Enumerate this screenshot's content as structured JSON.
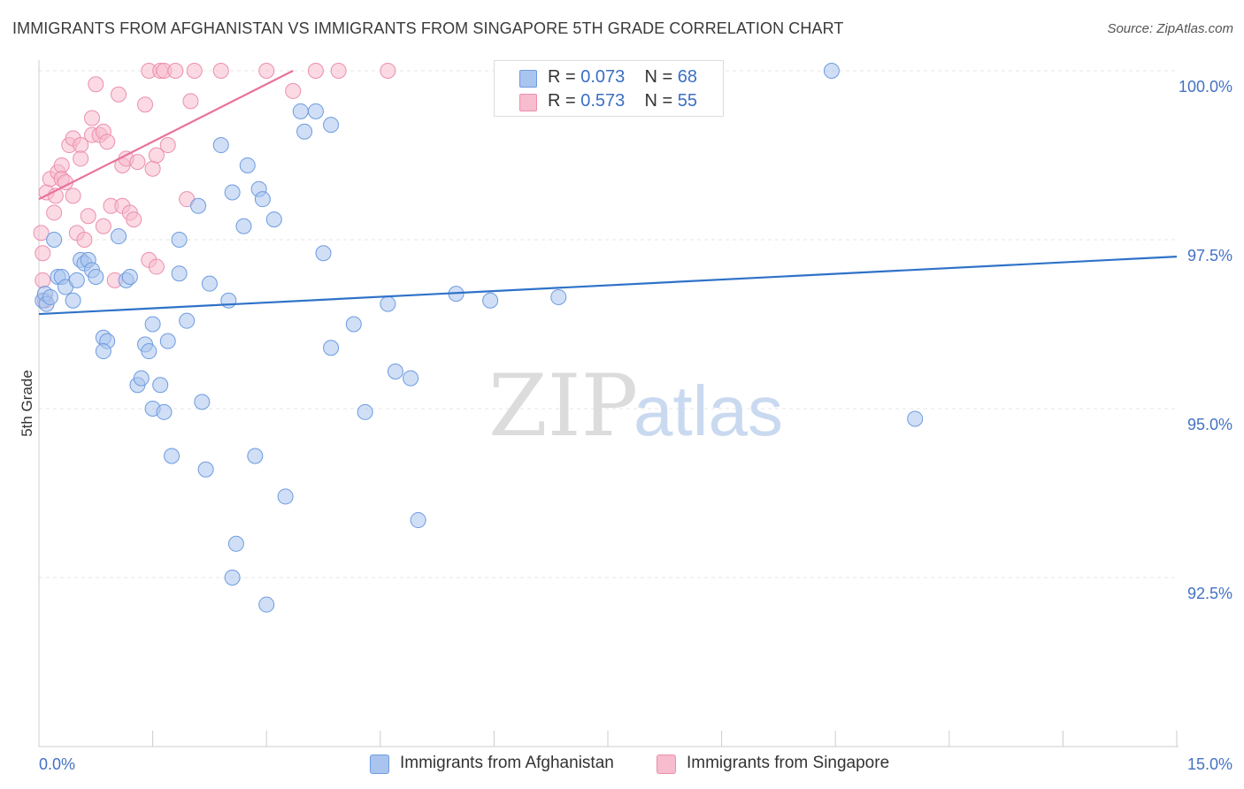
{
  "title": "IMMIGRANTS FROM AFGHANISTAN VS IMMIGRANTS FROM SINGAPORE 5TH GRADE CORRELATION CHART",
  "source": "Source: ZipAtlas.com",
  "watermark": {
    "zip": "ZIP",
    "atlas": "atlas"
  },
  "legend_top": {
    "rows": [
      {
        "r_label": "R =",
        "r_value": "0.073",
        "n_label": "N =",
        "n_value": "68"
      },
      {
        "r_label": "R =",
        "r_value": "0.573",
        "n_label": "N =",
        "n_value": "55"
      }
    ]
  },
  "legend_bottom": [
    "Immigrants from Afghanistan",
    "Immigrants from Singapore"
  ],
  "colors": {
    "afghanistan_fill": "#a9c4ee",
    "afghanistan_stroke": "#6d9be0",
    "afghanistan_line": "#2f72c8",
    "singapore_fill": "#f7bccd",
    "singapore_stroke": "#ec8fae",
    "singapore_line": "#e8729a",
    "tick_text": "#4472c4",
    "grid": "#e4e4e4"
  },
  "chart_data": {
    "type": "scatter",
    "title": "IMMIGRANTS FROM AFGHANISTAN VS IMMIGRANTS FROM SINGAPORE 5TH GRADE CORRELATION CHART",
    "xlabel": "",
    "ylabel": "5th Grade",
    "xlim": [
      0,
      15
    ],
    "ylim": [
      90.0,
      100.2
    ],
    "x_tick_labels": [
      "0.0%",
      "15.0%"
    ],
    "y_ticks": [
      92.5,
      95.0,
      97.5,
      100.0
    ],
    "y_tick_labels": [
      "92.5%",
      "95.0%",
      "97.5%",
      "100.0%"
    ],
    "grid": true,
    "legend_position": "top-center",
    "series": [
      {
        "name": "Immigrants from Afghanistan",
        "R": 0.073,
        "N": 68,
        "trend": {
          "x": [
            0,
            15
          ],
          "y": [
            96.4,
            97.25
          ]
        },
        "points": [
          [
            0.05,
            96.6
          ],
          [
            0.08,
            96.7
          ],
          [
            0.1,
            96.55
          ],
          [
            0.15,
            96.65
          ],
          [
            0.2,
            97.5
          ],
          [
            0.25,
            96.95
          ],
          [
            0.3,
            96.95
          ],
          [
            0.35,
            96.8
          ],
          [
            0.45,
            96.6
          ],
          [
            0.5,
            96.9
          ],
          [
            0.55,
            97.2
          ],
          [
            0.6,
            97.15
          ],
          [
            0.65,
            97.2
          ],
          [
            0.7,
            97.05
          ],
          [
            0.75,
            96.95
          ],
          [
            0.85,
            96.05
          ],
          [
            0.9,
            96.0
          ],
          [
            0.85,
            95.85
          ],
          [
            1.05,
            97.55
          ],
          [
            1.15,
            96.9
          ],
          [
            1.2,
            96.95
          ],
          [
            1.3,
            95.35
          ],
          [
            1.35,
            95.45
          ],
          [
            1.4,
            95.95
          ],
          [
            1.45,
            95.85
          ],
          [
            1.5,
            96.25
          ],
          [
            1.5,
            95.0
          ],
          [
            1.6,
            95.35
          ],
          [
            1.65,
            94.95
          ],
          [
            1.7,
            96.0
          ],
          [
            1.75,
            94.3
          ],
          [
            1.85,
            97.5
          ],
          [
            1.85,
            97.0
          ],
          [
            1.95,
            96.3
          ],
          [
            2.1,
            98.0
          ],
          [
            2.15,
            95.1
          ],
          [
            2.2,
            94.1
          ],
          [
            2.25,
            96.85
          ],
          [
            2.4,
            98.9
          ],
          [
            2.5,
            96.6
          ],
          [
            2.55,
            98.2
          ],
          [
            2.6,
            93.0
          ],
          [
            2.55,
            92.5
          ],
          [
            2.7,
            97.7
          ],
          [
            2.75,
            98.6
          ],
          [
            2.85,
            94.3
          ],
          [
            2.9,
            98.25
          ],
          [
            2.95,
            98.1
          ],
          [
            3.0,
            92.1
          ],
          [
            3.1,
            97.8
          ],
          [
            3.25,
            93.7
          ],
          [
            3.45,
            99.4
          ],
          [
            3.5,
            99.1
          ],
          [
            3.65,
            99.4
          ],
          [
            3.75,
            97.3
          ],
          [
            3.85,
            99.2
          ],
          [
            3.85,
            95.9
          ],
          [
            4.15,
            96.25
          ],
          [
            4.3,
            94.95
          ],
          [
            4.6,
            96.55
          ],
          [
            4.7,
            95.55
          ],
          [
            4.9,
            95.45
          ],
          [
            5.0,
            93.35
          ],
          [
            5.5,
            96.7
          ],
          [
            5.95,
            96.6
          ],
          [
            6.85,
            96.65
          ],
          [
            10.45,
            100.0
          ],
          [
            11.55,
            94.85
          ]
        ]
      },
      {
        "name": "Immigrants from Singapore",
        "R": 0.573,
        "N": 55,
        "trend": {
          "x": [
            0.0,
            3.35
          ],
          "y": [
            98.1,
            100.0
          ]
        },
        "points": [
          [
            0.03,
            97.6
          ],
          [
            0.05,
            97.3
          ],
          [
            0.05,
            96.9
          ],
          [
            0.08,
            96.6
          ],
          [
            0.1,
            98.2
          ],
          [
            0.15,
            98.4
          ],
          [
            0.2,
            97.9
          ],
          [
            0.22,
            98.15
          ],
          [
            0.25,
            98.5
          ],
          [
            0.3,
            98.6
          ],
          [
            0.3,
            98.4
          ],
          [
            0.35,
            98.35
          ],
          [
            0.4,
            98.9
          ],
          [
            0.45,
            98.15
          ],
          [
            0.45,
            99.0
          ],
          [
            0.5,
            97.6
          ],
          [
            0.55,
            98.9
          ],
          [
            0.55,
            98.7
          ],
          [
            0.6,
            97.5
          ],
          [
            0.65,
            97.85
          ],
          [
            0.7,
            99.3
          ],
          [
            0.7,
            99.05
          ],
          [
            0.75,
            99.8
          ],
          [
            0.8,
            99.05
          ],
          [
            0.85,
            97.7
          ],
          [
            0.85,
            99.1
          ],
          [
            0.9,
            98.95
          ],
          [
            0.95,
            98.0
          ],
          [
            1.0,
            96.9
          ],
          [
            1.05,
            99.65
          ],
          [
            1.1,
            98.6
          ],
          [
            1.1,
            98.0
          ],
          [
            1.15,
            98.7
          ],
          [
            1.2,
            97.9
          ],
          [
            1.25,
            97.8
          ],
          [
            1.3,
            98.65
          ],
          [
            1.4,
            99.5
          ],
          [
            1.45,
            97.2
          ],
          [
            1.45,
            100.0
          ],
          [
            1.5,
            98.55
          ],
          [
            1.55,
            98.75
          ],
          [
            1.55,
            97.1
          ],
          [
            1.6,
            100.0
          ],
          [
            1.65,
            100.0
          ],
          [
            1.7,
            98.9
          ],
          [
            1.8,
            100.0
          ],
          [
            1.95,
            98.1
          ],
          [
            2.0,
            99.55
          ],
          [
            2.05,
            100.0
          ],
          [
            2.4,
            100.0
          ],
          [
            3.0,
            100.0
          ],
          [
            3.35,
            99.7
          ],
          [
            3.65,
            100.0
          ],
          [
            3.95,
            100.0
          ],
          [
            4.6,
            100.0
          ]
        ]
      }
    ]
  }
}
